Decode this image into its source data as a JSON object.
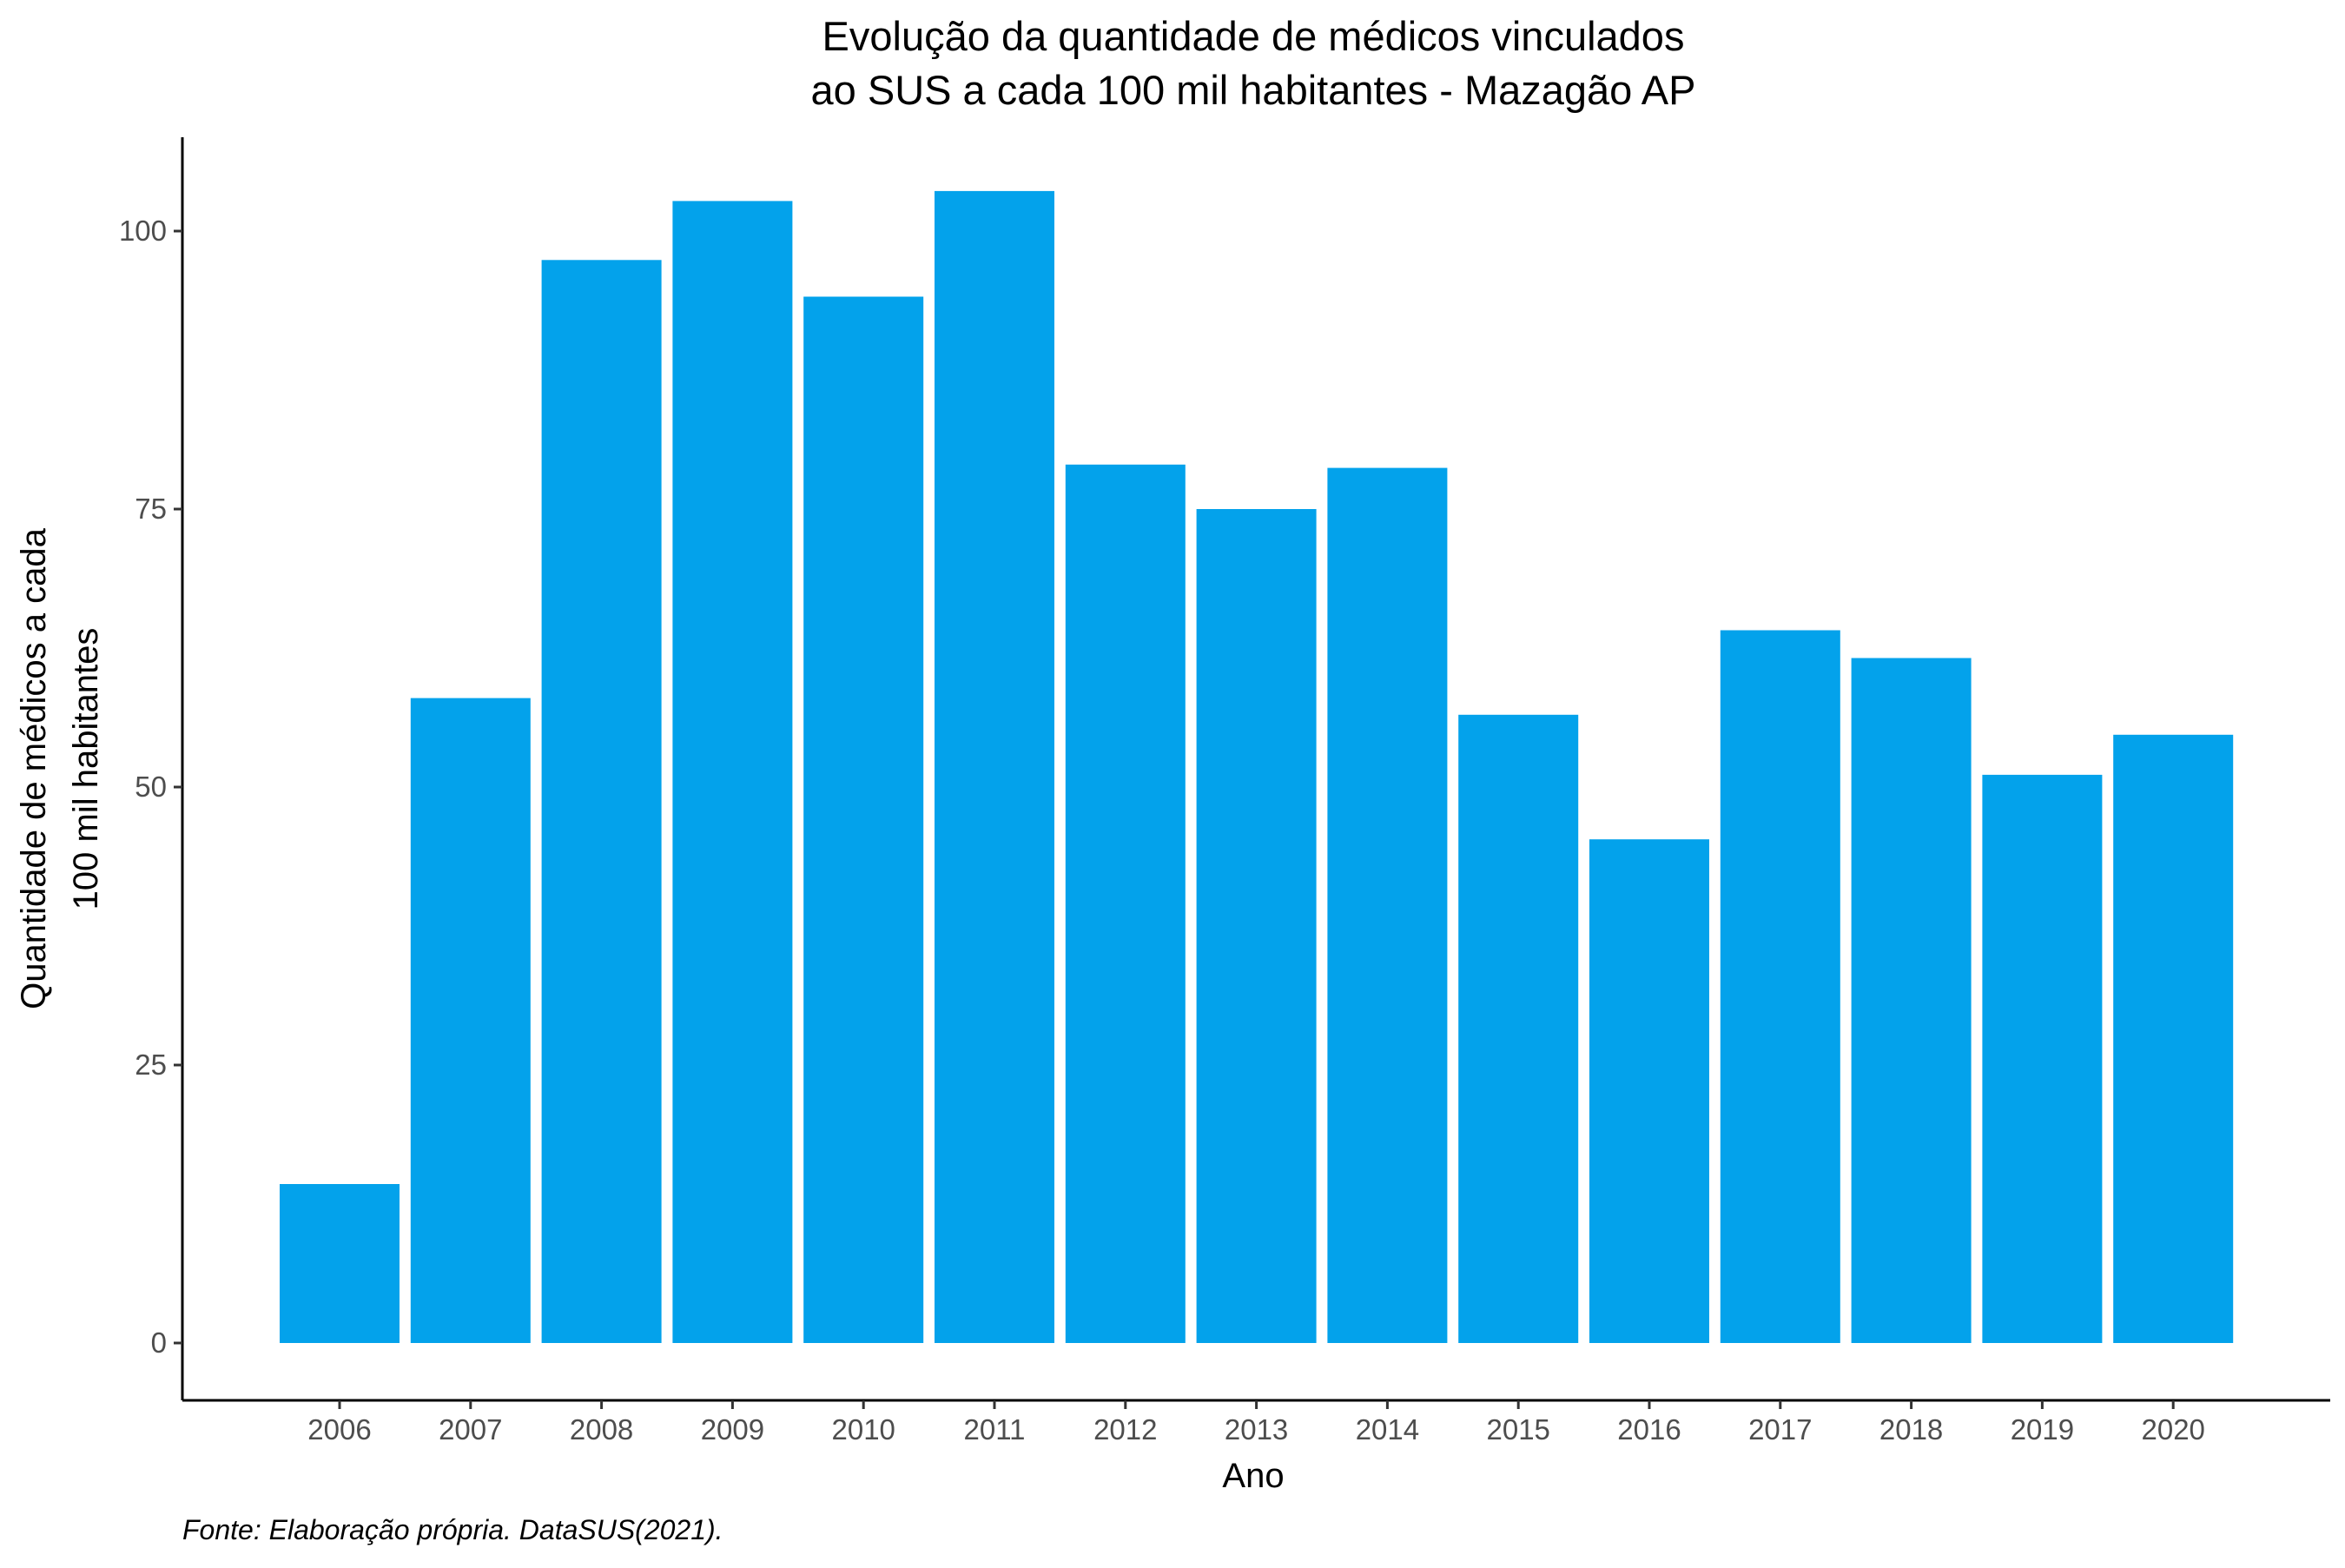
{
  "chart_data": {
    "type": "bar",
    "title_lines": [
      "Evolução da quantidade de médicos vinculados",
      "ao SUS a cada 100 mil habitantes - Mazagão AP"
    ],
    "xlabel": "Ano",
    "ylabel_lines": [
      "Quantidade de médicos a cada",
      "100 mil habitantes"
    ],
    "caption": "Fonte: Elaboração própria. DataSUS(2021).",
    "categories": [
      "2006",
      "2007",
      "2008",
      "2009",
      "2010",
      "2011",
      "2012",
      "2013",
      "2014",
      "2015",
      "2016",
      "2017",
      "2018",
      "2019",
      "2020"
    ],
    "values": [
      14.3,
      58.0,
      97.4,
      102.7,
      94.1,
      103.6,
      79.0,
      75.0,
      78.7,
      56.5,
      45.3,
      64.1,
      61.6,
      51.1,
      54.7
    ],
    "ylim": [
      0,
      108.5
    ],
    "yticks": [
      0,
      25,
      50,
      75,
      100
    ],
    "bar_color": "#03A2EB",
    "grid": false,
    "legend": "none"
  }
}
